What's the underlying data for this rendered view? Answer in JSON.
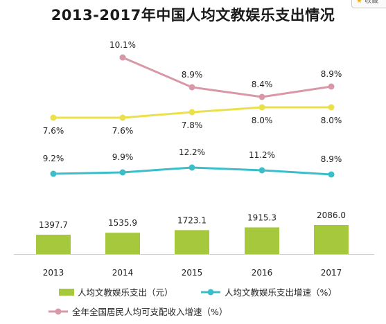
{
  "chart_data": {
    "type": "bar",
    "title": "2013-2017年中国人均文教娱乐支出情况",
    "categories": [
      "2013",
      "2014",
      "2015",
      "2016",
      "2017"
    ],
    "series": [
      {
        "name": "人均文教娱乐支出（元）",
        "type": "bar",
        "color": "#a6c83c",
        "values": [
          1397.7,
          1535.9,
          1723.1,
          1915.3,
          2086.0
        ],
        "labels": [
          "1397.7",
          "1535.9",
          "1723.1",
          "1915.3",
          "2086.0"
        ]
      },
      {
        "name": "人均文教娱乐支出增速（%）",
        "type": "line",
        "color": "#3cbec8",
        "values": [
          9.2,
          9.9,
          12.2,
          11.2,
          8.9
        ],
        "labels": [
          "9.2%",
          "9.9%",
          "12.2%",
          "11.2%",
          "8.9%"
        ]
      },
      {
        "name": "",
        "type": "line",
        "color": "#ebe04a",
        "values": [
          7.6,
          7.6,
          7.8,
          8.0,
          8.0
        ],
        "labels": [
          "7.6%",
          "7.6%",
          "7.8%",
          "8.0%",
          "8.0%"
        ]
      },
      {
        "name": "全年全国居民人均可支配收入增速（%）",
        "type": "line",
        "color": "#d898a8",
        "values": [
          null,
          10.1,
          8.9,
          8.4,
          8.9
        ],
        "labels": [
          "",
          "10.1%",
          "8.9%",
          "8.4%",
          "8.9%"
        ]
      }
    ],
    "legend_position": "bottom",
    "grid": false
  },
  "badge": {
    "label": "收藏",
    "icon": "star-icon"
  }
}
